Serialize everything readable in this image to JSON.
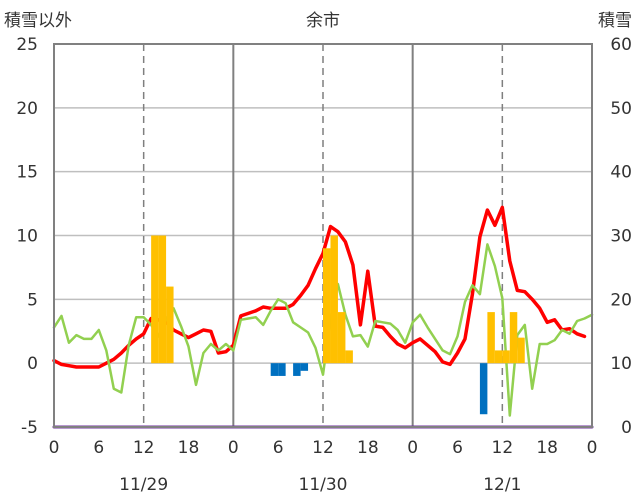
{
  "chart_data": {
    "type": "line",
    "title": "余市",
    "y_left_label": "積雪以外",
    "y_right_label": "積雪",
    "y_left": {
      "min": -5,
      "max": 25,
      "ticks": [
        "-5",
        "0",
        "5",
        "10",
        "15",
        "20",
        "25"
      ]
    },
    "y_right": {
      "min": 0,
      "max": 60,
      "ticks": [
        "0",
        "10",
        "20",
        "30",
        "40",
        "50",
        "60"
      ]
    },
    "x_range": [
      0,
      72
    ],
    "x_ticks": [
      {
        "x": 0,
        "label": "0"
      },
      {
        "x": 6,
        "label": "6"
      },
      {
        "x": 12,
        "label": "12"
      },
      {
        "x": 18,
        "label": "18"
      },
      {
        "x": 24,
        "label": "0"
      },
      {
        "x": 30,
        "label": "6"
      },
      {
        "x": 36,
        "label": "12"
      },
      {
        "x": 42,
        "label": "18"
      },
      {
        "x": 48,
        "label": "0"
      },
      {
        "x": 54,
        "label": "6"
      },
      {
        "x": 60,
        "label": "12"
      },
      {
        "x": 66,
        "label": "18"
      },
      {
        "x": 72,
        "label": "0"
      }
    ],
    "date_labels": [
      {
        "x": 12,
        "label": "11/29"
      },
      {
        "x": 36,
        "label": "11/30"
      },
      {
        "x": 60,
        "label": "12/1"
      }
    ],
    "grid": {
      "solid_at": [
        24,
        48
      ],
      "dashed_at": [
        12,
        36,
        60
      ],
      "horizontal": true
    },
    "colors": {
      "red_line": "#ff0000",
      "green_line": "#92d050",
      "orange_bars": "#ffc000",
      "blue_bars": "#0070c0",
      "bottom_line": "#7030a0",
      "grid": "#bfbfbf",
      "frame": "#808080"
    },
    "series": [
      {
        "style": "line",
        "color": "#ff0000",
        "axis": "left",
        "x": [
          0,
          1,
          2,
          3,
          4,
          5,
          6,
          7,
          8,
          9,
          10,
          11,
          12,
          13,
          14,
          15,
          16,
          17,
          18,
          19,
          20,
          21,
          22,
          23,
          24,
          25,
          26,
          27,
          28,
          29,
          30,
          31,
          32,
          33,
          34,
          35,
          36,
          37,
          38,
          39,
          40,
          41,
          42,
          43,
          44,
          45,
          46,
          47,
          48,
          49,
          50,
          51,
          52,
          53,
          54,
          55,
          56,
          57,
          58,
          59,
          60,
          61,
          62,
          63,
          64,
          65,
          66,
          67,
          68,
          69,
          70,
          71
        ],
        "y": [
          0.2,
          -0.1,
          -0.2,
          -0.3,
          -0.3,
          -0.3,
          -0.3,
          0.0,
          0.3,
          0.8,
          1.4,
          1.9,
          2.3,
          3.5,
          3.4,
          3.2,
          2.6,
          2.3,
          2.0,
          2.3,
          2.6,
          2.5,
          0.8,
          0.9,
          1.4,
          3.7,
          3.9,
          4.1,
          4.4,
          4.3,
          4.3,
          4.3,
          4.6,
          5.3,
          6.1,
          7.4,
          8.6,
          10.7,
          10.3,
          9.5,
          7.7,
          3.0,
          7.2,
          2.9,
          2.8,
          2.1,
          1.5,
          1.2,
          1.6,
          1.9,
          1.4,
          0.9,
          0.1,
          -0.1,
          0.8,
          1.9,
          5.4,
          9.9,
          12.0,
          10.8,
          12.2,
          8.0,
          5.7,
          5.6,
          5.0,
          4.3,
          3.2,
          3.4,
          2.6,
          2.7,
          2.3,
          2.1
        ]
      },
      {
        "style": "line",
        "color": "#92d050",
        "axis": "left",
        "x": [
          0,
          1,
          2,
          3,
          4,
          5,
          6,
          7,
          8,
          9,
          10,
          11,
          12,
          13,
          14,
          15,
          16,
          17,
          18,
          19,
          20,
          21,
          22,
          23,
          24,
          25,
          26,
          27,
          28,
          29,
          30,
          31,
          32,
          33,
          34,
          35,
          36,
          37,
          38,
          39,
          40,
          41,
          42,
          43,
          44,
          45,
          46,
          47,
          48,
          49,
          50,
          51,
          52,
          53,
          54,
          55,
          56,
          57,
          58,
          59,
          60,
          61,
          62,
          63,
          64,
          65,
          66,
          67,
          68,
          69,
          70,
          71,
          72
        ],
        "y": [
          2.8,
          3.7,
          1.6,
          2.2,
          1.9,
          1.9,
          2.6,
          1.0,
          -2.0,
          -2.3,
          1.4,
          3.6,
          3.6,
          3.0,
          2.1,
          3.5,
          4.3,
          2.9,
          1.3,
          -1.7,
          0.8,
          1.5,
          1.0,
          1.5,
          1.0,
          3.4,
          3.5,
          3.6,
          3.0,
          4.1,
          5.0,
          4.7,
          3.2,
          2.8,
          2.4,
          1.2,
          -0.9,
          3.5,
          6.2,
          3.8,
          2.1,
          2.2,
          1.3,
          3.3,
          3.2,
          3.1,
          2.6,
          1.6,
          3.2,
          3.8,
          2.8,
          1.9,
          1.0,
          0.7,
          2.1,
          4.8,
          6.1,
          5.4,
          9.3,
          7.6,
          5.1,
          -4.1,
          2.2,
          3.0,
          -2.0,
          1.5,
          1.5,
          1.8,
          2.6,
          2.3,
          3.3,
          3.5,
          3.8
        ]
      },
      {
        "style": "bar",
        "color": "#ffc000",
        "axis": "left",
        "x": [
          13.5,
          14.5,
          15.5,
          36.5,
          37.5,
          38.5,
          39.5,
          58.5,
          59.5,
          60.5,
          61.5,
          62.5
        ],
        "y": [
          10.0,
          10.0,
          6.0,
          9.0,
          10.0,
          4.0,
          1.0,
          4.0,
          1.0,
          1.0,
          4.0,
          2.0
        ]
      },
      {
        "style": "bar",
        "color": "#0070c0",
        "axis": "left",
        "x": [
          29.5,
          30.5,
          32.5,
          33.5,
          57.5
        ],
        "y": [
          -1.0,
          -1.0,
          -1.0,
          -0.6,
          -4.0
        ]
      },
      {
        "style": "line",
        "color": "#7030a0",
        "axis": "right",
        "x": [
          0,
          72
        ],
        "y": [
          0,
          0
        ]
      }
    ]
  }
}
